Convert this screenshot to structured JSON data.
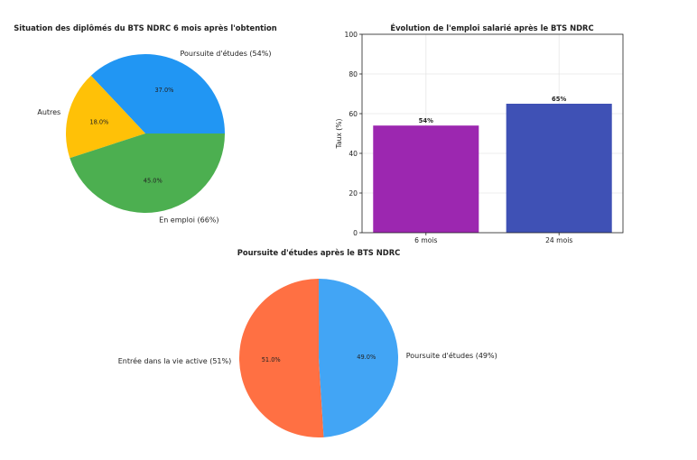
{
  "chart_data": [
    {
      "type": "pie",
      "title": "Situation des diplômés du BTS NDRC 6 mois après l'obtention",
      "labels": [
        "Poursuite d'études (54%)",
        "Autres",
        "En emploi (66%)"
      ],
      "values": [
        37.0,
        18.0,
        45.0
      ],
      "pct_labels": [
        "37.0%",
        "18.0%",
        "45.0%"
      ],
      "colors": [
        "#2196F3",
        "#FFC107",
        "#4CAF50"
      ]
    },
    {
      "type": "bar",
      "title": "Évolution de l'emploi salarié après le BTS NDRC",
      "categories": [
        "6 mois",
        "24 mois"
      ],
      "values": [
        54,
        65
      ],
      "data_labels": [
        "54%",
        "65%"
      ],
      "colors": [
        "#9C27B0",
        "#3F51B5"
      ],
      "xlabel": "",
      "ylabel": "Taux (%)",
      "ylim": [
        0,
        100
      ],
      "yticks": [
        "0",
        "20",
        "40",
        "60",
        "80",
        "100"
      ],
      "grid": true
    },
    {
      "type": "pie",
      "title": "Poursuite d'études après le BTS NDRC",
      "labels": [
        "Entrée dans la vie active (51%)",
        "Poursuite d'études (49%)"
      ],
      "values": [
        51.0,
        49.0
      ],
      "pct_labels": [
        "51.0%",
        "49.0%"
      ],
      "colors": [
        "#FF7043",
        "#42A5F5"
      ]
    }
  ]
}
